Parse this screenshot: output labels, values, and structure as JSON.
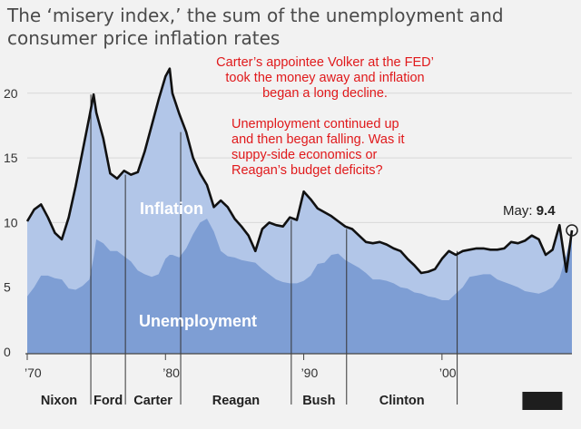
{
  "title": {
    "line1": "The ‘misery index,’ the sum of the unemployment and",
    "line2": "consumer price inflation rates"
  },
  "annotations": {
    "note1": [
      "Carter’s appointee Volker at the FED’",
      "took the money away and inflation",
      "began a long decline."
    ],
    "note2": [
      "Unemployment continued up",
      "and then began falling. Was it",
      "suppy-side economics or",
      "Reagan’s budget deficits?"
    ]
  },
  "chart_data": {
    "type": "area",
    "title": "The ‘misery index,’ the sum of the unemployment and consumer price inflation rates",
    "xlabel": "",
    "ylabel": "",
    "xlim": [
      1970,
      2009.4
    ],
    "ylim": [
      0,
      23
    ],
    "yticks": [
      0,
      5,
      10,
      15,
      20
    ],
    "xticks": [
      {
        "value": 1970,
        "label": "’70"
      },
      {
        "value": 1980,
        "label": "’80"
      },
      {
        "value": 1990,
        "label": "’90"
      },
      {
        "value": 2000,
        "label": "’00"
      }
    ],
    "series_labels": {
      "inflation": "Inflation",
      "unemployment": "Unemployment"
    },
    "callout": {
      "year": 2009.4,
      "value": 9.4,
      "label": "May:",
      "value_label": "9.4"
    },
    "x": [
      1970.0,
      1970.5,
      1971.0,
      1971.5,
      1972.0,
      1972.5,
      1973.0,
      1973.5,
      1974.0,
      1974.5,
      1974.8,
      1975.0,
      1975.5,
      1976.0,
      1976.5,
      1977.0,
      1977.5,
      1978.0,
      1978.5,
      1979.0,
      1979.5,
      1980.0,
      1980.3,
      1980.5,
      1981.0,
      1981.5,
      1982.0,
      1982.5,
      1983.0,
      1983.5,
      1984.0,
      1984.5,
      1985.0,
      1985.5,
      1986.0,
      1986.5,
      1987.0,
      1987.5,
      1988.0,
      1988.5,
      1989.0,
      1989.5,
      1990.0,
      1990.5,
      1991.0,
      1991.5,
      1992.0,
      1992.5,
      1993.0,
      1993.5,
      1994.0,
      1994.5,
      1995.0,
      1995.5,
      1996.0,
      1996.5,
      1997.0,
      1997.5,
      1998.0,
      1998.5,
      1999.0,
      1999.5,
      2000.0,
      2000.5,
      2001.0,
      2001.5,
      2002.0,
      2002.5,
      2003.0,
      2003.5,
      2004.0,
      2004.5,
      2005.0,
      2005.5,
      2006.0,
      2006.5,
      2007.0,
      2007.5,
      2008.0,
      2008.5,
      2009.0,
      2009.4
    ],
    "series": [
      {
        "name": "Misery index",
        "values": [
          10.1,
          11.0,
          11.4,
          10.4,
          9.2,
          8.7,
          10.4,
          12.8,
          15.5,
          18.2,
          19.9,
          18.5,
          16.5,
          13.8,
          13.4,
          14.0,
          13.7,
          13.9,
          15.5,
          17.5,
          19.5,
          21.3,
          21.9,
          20.0,
          18.4,
          17.0,
          15.0,
          13.8,
          12.9,
          11.2,
          11.7,
          11.2,
          10.3,
          9.7,
          9.0,
          7.8,
          9.5,
          10.0,
          9.8,
          9.7,
          10.4,
          10.2,
          12.4,
          11.8,
          11.1,
          10.8,
          10.5,
          10.1,
          9.7,
          9.5,
          9.0,
          8.5,
          8.4,
          8.5,
          8.3,
          8.0,
          7.8,
          7.2,
          6.7,
          6.1,
          6.2,
          6.4,
          7.2,
          7.8,
          7.5,
          7.8,
          7.9,
          8.0,
          8.0,
          7.9,
          7.9,
          8.0,
          8.5,
          8.4,
          8.6,
          9.0,
          8.7,
          7.5,
          7.9,
          9.8,
          6.2,
          9.4
        ]
      },
      {
        "name": "Unemployment",
        "values": [
          4.3,
          5.0,
          5.9,
          5.9,
          5.7,
          5.6,
          4.9,
          4.8,
          5.1,
          5.6,
          7.3,
          8.7,
          8.4,
          7.8,
          7.8,
          7.4,
          7.0,
          6.3,
          6.0,
          5.8,
          6.0,
          7.2,
          7.5,
          7.5,
          7.3,
          8.0,
          9.1,
          10.0,
          10.3,
          9.3,
          7.8,
          7.4,
          7.3,
          7.1,
          7.0,
          6.9,
          6.4,
          6.0,
          5.6,
          5.4,
          5.3,
          5.3,
          5.5,
          5.9,
          6.8,
          6.9,
          7.5,
          7.6,
          7.1,
          6.8,
          6.5,
          6.1,
          5.6,
          5.6,
          5.5,
          5.3,
          5.0,
          4.9,
          4.6,
          4.5,
          4.3,
          4.2,
          4.0,
          4.0,
          4.5,
          5.0,
          5.8,
          5.9,
          6.0,
          6.0,
          5.6,
          5.4,
          5.2,
          5.0,
          4.7,
          4.6,
          4.5,
          4.7,
          5.0,
          5.7,
          7.5,
          9.4
        ]
      }
    ],
    "presidencies": [
      {
        "name": "Nixon",
        "start": 1970.0,
        "end": 1974.6
      },
      {
        "name": "Ford",
        "start": 1974.6,
        "end": 1977.1
      },
      {
        "name": "Carter",
        "start": 1977.1,
        "end": 1981.1
      },
      {
        "name": "Reagan",
        "start": 1981.1,
        "end": 1989.1
      },
      {
        "name": "Bush",
        "start": 1989.1,
        "end": 1993.1
      },
      {
        "name": "Clinton",
        "start": 1993.1,
        "end": 2001.1
      },
      {
        "name": "",
        "start": 2001.1,
        "end": 2009.1
      }
    ],
    "colors": {
      "background": "#f2f2f2",
      "inflation": "#b2c6e8",
      "unemployment": "#7e9ed4",
      "line": "#111111",
      "gridline": "#d8d8d8",
      "axis_text": "#333333",
      "label_white": "#ffffff",
      "annotation": "#e0191b"
    }
  }
}
